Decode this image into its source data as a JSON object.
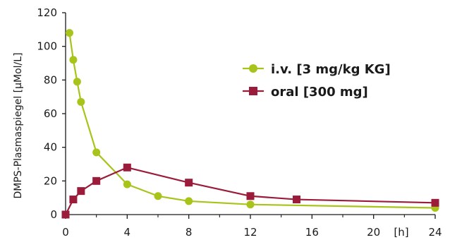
{
  "chart_data": {
    "type": "line",
    "xlabel": "[h]",
    "ylabel": "DMPS-Plasmaspiegel [µMol/L]",
    "xlim": [
      0,
      24
    ],
    "ylim": [
      0,
      120
    ],
    "xticks": [
      0,
      4,
      8,
      12,
      16,
      20,
      24
    ],
    "yticks": [
      0,
      20,
      40,
      60,
      80,
      100,
      120
    ],
    "grid": false,
    "legend_position": "top-right",
    "series": [
      {
        "name": "i.v. [3 mg/kg KG]",
        "color": "#a8c41a",
        "marker": "circle",
        "x": [
          0.25,
          0.5,
          0.75,
          1,
          2,
          4,
          6,
          8,
          12,
          24
        ],
        "y": [
          108,
          92,
          79,
          67,
          37,
          18,
          11,
          8,
          6,
          4
        ]
      },
      {
        "name": "oral [300 mg]",
        "color": "#9b1b3a",
        "marker": "square",
        "x": [
          0,
          0.5,
          1,
          2,
          4,
          8,
          12,
          15,
          24
        ],
        "y": [
          0,
          9,
          14,
          20,
          28,
          19,
          11,
          9,
          7
        ]
      }
    ]
  }
}
